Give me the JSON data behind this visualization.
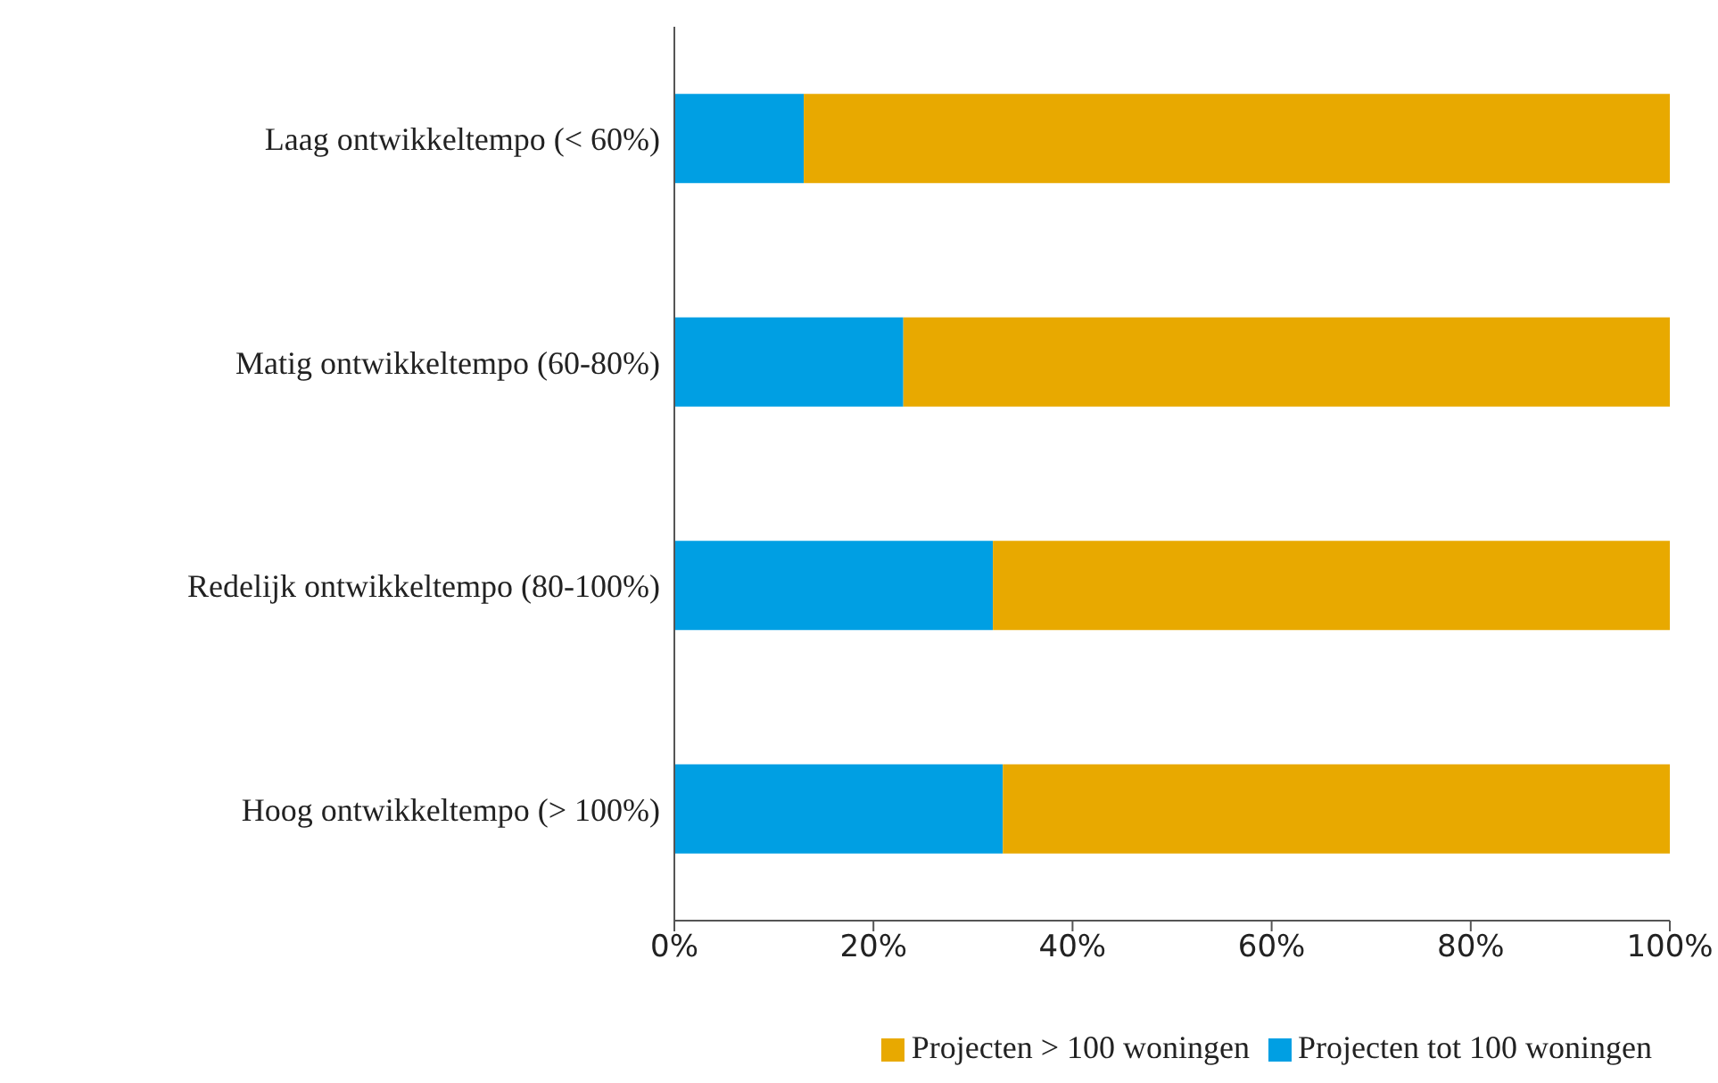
{
  "chart_data": {
    "type": "bar",
    "orientation": "horizontal",
    "stacked": true,
    "categories": [
      "Laag ontwikkeltempo (< 60%)",
      "Matig ontwikkeltempo (60-80%)",
      "Redelijk ontwikkeltempo (80-100%)",
      "Hoog ontwikkeltempo (> 100%)"
    ],
    "series": [
      {
        "name": "Projecten tot 100 woningen",
        "color": "#009fe3",
        "values": [
          13,
          23,
          32,
          33
        ]
      },
      {
        "name": "Projecten > 100 woningen",
        "color": "#e8a900",
        "values": [
          87,
          77,
          68,
          67
        ]
      }
    ],
    "xlim": [
      0,
      100
    ],
    "xticks": [
      {
        "value": 0,
        "label": "0%"
      },
      {
        "value": 20,
        "label": "20%"
      },
      {
        "value": 40,
        "label": "40%"
      },
      {
        "value": 60,
        "label": "60%"
      },
      {
        "value": 80,
        "label": "80%"
      },
      {
        "value": 100,
        "label": "100%"
      }
    ],
    "grid": false,
    "legend": "bottom"
  }
}
